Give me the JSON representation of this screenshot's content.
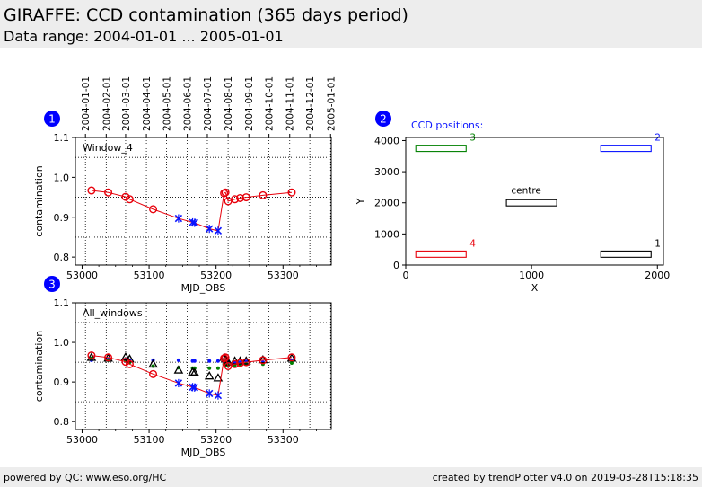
{
  "header": {
    "title": "GIRAFFE: CCD contamination (365 days period)",
    "subtitle": "Data range: 2004-01-01 ... 2005-01-01"
  },
  "footer": {
    "left": "powered by QC: www.eso.org/HC",
    "right": "created by trendPlotter v4.0 on 2019-03-28T15:18:35"
  },
  "badges": [
    "1",
    "2",
    "3"
  ],
  "colors": {
    "header_bg": "#ededed",
    "red": "#e8000b",
    "blue": "#0a14ff",
    "green": "#008000",
    "badge": "#0000ff"
  },
  "chart_data": [
    {
      "type": "line",
      "label": "Window_4",
      "xlabel": "MJD_OBS",
      "ylabel": "contamination",
      "xlim": [
        52990,
        53372
      ],
      "ylim": [
        0.78,
        1.1
      ],
      "xticks": [
        53000,
        53100,
        53200,
        53300
      ],
      "yticks": [
        0.8,
        0.9,
        1.0,
        1.1
      ],
      "hlines": [
        1.05,
        0.95,
        0.85
      ],
      "top_axis_dates": [
        "2004-01-01",
        "2004-02-01",
        "2004-03-01",
        "2004-04-01",
        "2004-05-01",
        "2004-06-01",
        "2004-07-01",
        "2004-08-01",
        "2004-09-01",
        "2004-10-01",
        "2004-11-01",
        "2004-12-01",
        "2005-01-01"
      ],
      "top_axis_mjd": [
        53005,
        53036,
        53065,
        53096,
        53126,
        53157,
        53187,
        53218,
        53249,
        53279,
        53310,
        53340,
        53371
      ],
      "series": [
        {
          "x": [
            53014,
            53039,
            53065,
            53071,
            53106,
            53144,
            53165,
            53168,
            53190,
            53203,
            53212,
            53214,
            53218,
            53228,
            53236,
            53245,
            53270,
            53313
          ],
          "y": [
            0.967,
            0.962,
            0.951,
            0.945,
            0.92,
            0.897,
            0.887,
            0.886,
            0.871,
            0.866,
            0.96,
            0.962,
            0.94,
            0.945,
            0.948,
            0.95,
            0.955,
            0.962
          ],
          "marker": [
            "circle",
            "circle",
            "circle",
            "circle",
            "circle",
            "x",
            "x",
            "x",
            "x",
            "x",
            "circle",
            "circle",
            "circle",
            "circle",
            "circle",
            "circle",
            "circle",
            "circle"
          ]
        }
      ]
    },
    {
      "type": "scatter",
      "label": "CCD positions:",
      "xlabel": "X",
      "ylabel": "Y",
      "xlim": [
        0,
        2048
      ],
      "ylim": [
        0,
        4100
      ],
      "xticks": [
        0,
        1000,
        2000
      ],
      "yticks": [
        0,
        1000,
        2000,
        3000,
        4000
      ],
      "boxes": [
        {
          "name": "1",
          "color": "black",
          "x": [
            1550,
            1950
          ],
          "y": [
            250,
            450
          ]
        },
        {
          "name": "2",
          "color": "blue",
          "x": [
            1550,
            1950
          ],
          "y": [
            3650,
            3850
          ]
        },
        {
          "name": "3",
          "color": "green",
          "x": [
            80,
            480
          ],
          "y": [
            3650,
            3850
          ]
        },
        {
          "name": "4",
          "color": "red",
          "x": [
            80,
            480
          ],
          "y": [
            250,
            450
          ]
        },
        {
          "name": "centre",
          "color": "black",
          "x": [
            800,
            1200
          ],
          "y": [
            1900,
            2100
          ]
        }
      ]
    },
    {
      "type": "scatter",
      "label": "All_windows",
      "xlabel": "MJD_OBS",
      "ylabel": "contamination",
      "xlim": [
        52990,
        53372
      ],
      "ylim": [
        0.78,
        1.1
      ],
      "xticks": [
        53000,
        53100,
        53200,
        53300
      ],
      "yticks": [
        0.8,
        0.9,
        1.0,
        1.1
      ],
      "hlines": [
        1.05,
        0.95,
        0.85
      ],
      "series": [
        {
          "name": "red",
          "x": [
            53014,
            53039,
            53065,
            53071,
            53106,
            53144,
            53165,
            53168,
            53190,
            53203,
            53212,
            53214,
            53218,
            53228,
            53236,
            53245,
            53270,
            53313
          ],
          "y": [
            0.967,
            0.962,
            0.951,
            0.945,
            0.92,
            0.897,
            0.887,
            0.886,
            0.871,
            0.866,
            0.96,
            0.962,
            0.94,
            0.945,
            0.948,
            0.95,
            0.955,
            0.962
          ],
          "marker": [
            "circle",
            "circle",
            "circle",
            "circle",
            "circle",
            "x",
            "x",
            "x",
            "x",
            "x",
            "circle",
            "circle",
            "circle",
            "circle",
            "circle",
            "circle",
            "circle",
            "circle"
          ]
        },
        {
          "name": "black",
          "x": [
            53014,
            53039,
            53065,
            53071,
            53106,
            53144,
            53165,
            53168,
            53190,
            53203,
            53212,
            53214,
            53218,
            53228,
            53236,
            53245,
            53270,
            53313
          ],
          "y": [
            0.962,
            0.96,
            0.963,
            0.958,
            0.945,
            0.93,
            0.925,
            0.923,
            0.915,
            0.91,
            0.962,
            0.958,
            0.95,
            0.953,
            0.953,
            0.953,
            0.956,
            0.96
          ],
          "marker": "triangle"
        },
        {
          "name": "blue",
          "x": [
            53014,
            53039,
            53065,
            53071,
            53106,
            53144,
            53165,
            53168,
            53190,
            53203,
            53212,
            53214,
            53218,
            53228,
            53236,
            53245,
            53270,
            53313
          ],
          "y": [
            0.955,
            0.957,
            0.957,
            0.955,
            0.955,
            0.955,
            0.953,
            0.953,
            0.953,
            0.953,
            0.95,
            0.948,
            0.95,
            0.95,
            0.95,
            0.952,
            0.95,
            0.955
          ],
          "marker": "dot"
        },
        {
          "name": "green",
          "x": [
            53014,
            53039,
            53065,
            53071,
            53106,
            53144,
            53165,
            53168,
            53190,
            53203,
            53212,
            53214,
            53218,
            53228,
            53236,
            53245,
            53270,
            53313
          ],
          "y": [
            0.96,
            0.955,
            0.955,
            0.95,
            0.94,
            0.936,
            0.935,
            0.935,
            0.935,
            0.935,
            0.945,
            0.943,
            0.942,
            0.942,
            0.943,
            0.945,
            0.945,
            0.948
          ],
          "marker": "dot"
        }
      ]
    }
  ]
}
